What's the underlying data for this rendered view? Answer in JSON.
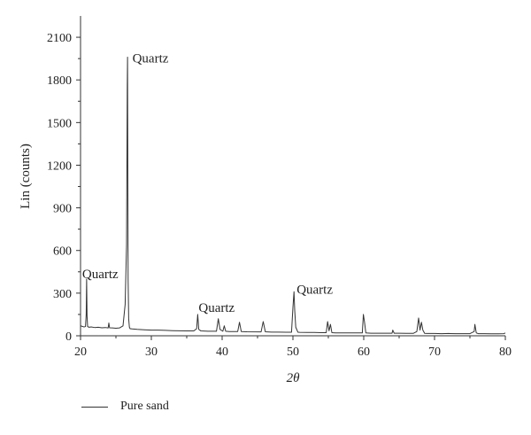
{
  "chart_data": {
    "type": "line",
    "xlabel": "2θ",
    "ylabel": "Lin (counts)",
    "xlim": [
      20,
      80
    ],
    "ylim": [
      0,
      2250
    ],
    "x_ticks": [
      20,
      30,
      40,
      50,
      60,
      70,
      80
    ],
    "y_ticks": [
      0,
      300,
      600,
      900,
      1200,
      1500,
      1800,
      2100
    ],
    "grid": false,
    "legend_position": "bottom-left",
    "series": [
      {
        "name": "Pure sand",
        "color": "#333333",
        "x": [
          20.0,
          20.5,
          20.7,
          20.8,
          20.86,
          20.92,
          21.0,
          21.2,
          21.5,
          22.0,
          22.5,
          23.0,
          23.5,
          23.9,
          24.0,
          24.1,
          24.5,
          25.0,
          25.5,
          26.0,
          26.3,
          26.5,
          26.6,
          26.64,
          26.68,
          26.72,
          26.8,
          26.9,
          27.0,
          27.3,
          28.0,
          29.0,
          30.0,
          31.0,
          32.0,
          33.0,
          34.0,
          35.0,
          36.0,
          36.4,
          36.55,
          36.7,
          37.0,
          38.0,
          39.2,
          39.46,
          39.7,
          40.1,
          40.3,
          40.5,
          41.0,
          42.2,
          42.45,
          42.7,
          43.5,
          45.5,
          45.8,
          46.1,
          47.0,
          48.0,
          49.0,
          49.8,
          50.0,
          50.15,
          50.25,
          50.4,
          50.7,
          51.0,
          52.0,
          53.0,
          54.0,
          54.7,
          54.9,
          55.1,
          55.3,
          55.5,
          56.0,
          57.0,
          58.0,
          59.0,
          59.8,
          59.95,
          60.1,
          60.3,
          61.0,
          62.0,
          63.0,
          64.0,
          64.1,
          64.3,
          65.0,
          66.0,
          67.0,
          67.5,
          67.75,
          67.95,
          68.15,
          68.35,
          68.6,
          69.0,
          70.0,
          71.0,
          72.0,
          73.0,
          74.0,
          75.0,
          75.6,
          75.7,
          75.9,
          76.2,
          77.0,
          78.0,
          79.0,
          79.8,
          80.0
        ],
        "y": [
          70,
          62,
          65,
          150,
          400,
          140,
          65,
          60,
          62,
          58,
          60,
          56,
          58,
          55,
          90,
          56,
          55,
          53,
          55,
          70,
          220,
          640,
          1750,
          1960,
          1100,
          400,
          120,
          60,
          50,
          48,
          45,
          42,
          40,
          40,
          38,
          36,
          35,
          34,
          34,
          50,
          150,
          45,
          34,
          32,
          32,
          120,
          45,
          32,
          70,
          32,
          30,
          30,
          95,
          30,
          28,
          27,
          100,
          28,
          26,
          26,
          25,
          25,
          200,
          310,
          180,
          60,
          25,
          24,
          23,
          23,
          22,
          22,
          100,
          35,
          80,
          22,
          20,
          20,
          20,
          20,
          20,
          150,
          100,
          20,
          18,
          18,
          18,
          18,
          40,
          18,
          18,
          17,
          17,
          30,
          125,
          40,
          95,
          40,
          17,
          16,
          16,
          15,
          16,
          15,
          15,
          15,
          30,
          80,
          20,
          15,
          15,
          14,
          14,
          15,
          20
        ]
      }
    ],
    "annotations": [
      {
        "text": "Quartz",
        "x": 26.7,
        "y": 1960
      },
      {
        "text": "Quartz",
        "x": 20.86,
        "y": 400
      },
      {
        "text": "Quartz",
        "x": 36.55,
        "y": 150
      },
      {
        "text": "Quartz",
        "x": 50.15,
        "y": 310
      }
    ]
  }
}
